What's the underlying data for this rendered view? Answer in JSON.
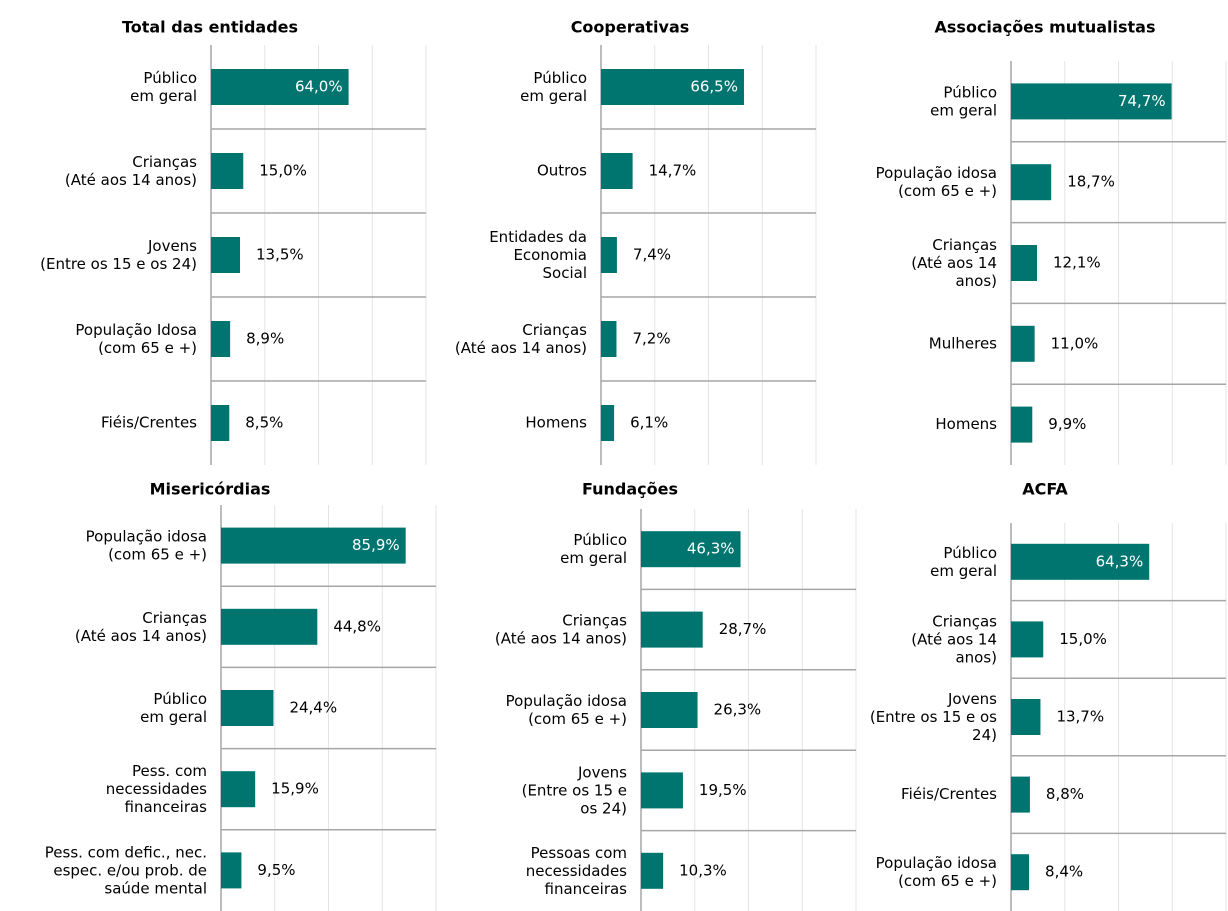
{
  "chart_data": [
    {
      "type": "bar",
      "title": "Total das entidades",
      "color": "#00746f",
      "xlim": [
        0,
        100
      ],
      "xticks": [
        0,
        25,
        50,
        75,
        100
      ],
      "grid": true,
      "categories": [
        "Público\nem geral",
        "Crianças\n(Até aos 14 anos)",
        "Jovens\n(Entre os 15 e os 24)",
        "População Idosa\n(com 65 e +)",
        "Fiéis/Crentes"
      ],
      "values": [
        64.0,
        15.0,
        13.5,
        8.9,
        8.5
      ],
      "value_labels": [
        "64,0%",
        "15,0%",
        "13,5%",
        "8,9%",
        "8,5%"
      ]
    },
    {
      "type": "bar",
      "title": "Cooperativas",
      "color": "#00746f",
      "xlim": [
        0,
        100
      ],
      "xticks": [
        0,
        25,
        50,
        75,
        100
      ],
      "grid": true,
      "categories": [
        "Público\nem geral",
        "Outros",
        "Entidades da\nEconomia\nSocial",
        "Crianças\n(Até aos 14 anos)",
        "Homens"
      ],
      "values": [
        66.5,
        14.7,
        7.4,
        7.2,
        6.1
      ],
      "value_labels": [
        "66,5%",
        "14,7%",
        "7,4%",
        "7,2%",
        "6,1%"
      ]
    },
    {
      "type": "bar",
      "title": "Associações mutualistas",
      "color": "#00746f",
      "xlim": [
        0,
        100
      ],
      "xticks": [
        0,
        25,
        50,
        75,
        100
      ],
      "grid": true,
      "categories": [
        "Público\nem geral",
        "População idosa\n(com 65 e +)",
        "Crianças\n(Até aos 14\nanos)",
        "Mulheres",
        "Homens"
      ],
      "values": [
        74.7,
        18.7,
        12.1,
        11.0,
        9.9
      ],
      "value_labels": [
        "74,7%",
        "18,7%",
        "12,1%",
        "11,0%",
        "9,9%"
      ]
    },
    {
      "type": "bar",
      "title": "Misericórdias",
      "color": "#00746f",
      "xlim": [
        0,
        100
      ],
      "xticks": [
        0,
        25,
        50,
        75,
        100
      ],
      "grid": true,
      "categories": [
        "População idosa\n(com 65 e +)",
        "Crianças\n(Até aos 14 anos)",
        "Público\nem geral",
        "Pess. com\nnecessidades\nfinanceiras",
        "Pess. com defic., nec.\nespec. e/ou prob. de\nsaúde mental"
      ],
      "values": [
        85.9,
        44.8,
        24.4,
        15.9,
        9.5
      ],
      "value_labels": [
        "85,9%",
        "44,8%",
        "24,4%",
        "15,9%",
        "9,5%"
      ]
    },
    {
      "type": "bar",
      "title": "Fundações",
      "color": "#00746f",
      "xlim": [
        0,
        100
      ],
      "xticks": [
        0,
        25,
        50,
        75,
        100
      ],
      "grid": true,
      "categories": [
        "Público\nem geral",
        "Crianças\n(Até aos 14 anos)",
        "População idosa\n(com 65 e +)",
        "Jovens\n(Entre os 15 e\nos 24)",
        "Pessoas com\nnecessidades\nfinanceiras"
      ],
      "values": [
        46.3,
        28.7,
        26.3,
        19.5,
        10.3
      ],
      "value_labels": [
        "46,3%",
        "28,7%",
        "26,3%",
        "19,5%",
        "10,3%"
      ]
    },
    {
      "type": "bar",
      "title": "ACFA",
      "color": "#00746f",
      "xlim": [
        0,
        100
      ],
      "xticks": [
        0,
        25,
        50,
        75,
        100
      ],
      "grid": true,
      "categories": [
        "Público\nem geral",
        "Crianças\n(Até aos 14\nanos)",
        "Jovens\n(Entre os 15 e os\n24)",
        "Fiéis/Crentes",
        "População idosa\n(com 65 e +)"
      ],
      "values": [
        64.3,
        15.0,
        13.7,
        8.8,
        8.4
      ],
      "value_labels": [
        "64,3%",
        "15,0%",
        "13,7%",
        "8,8%",
        "8,4%"
      ]
    }
  ]
}
